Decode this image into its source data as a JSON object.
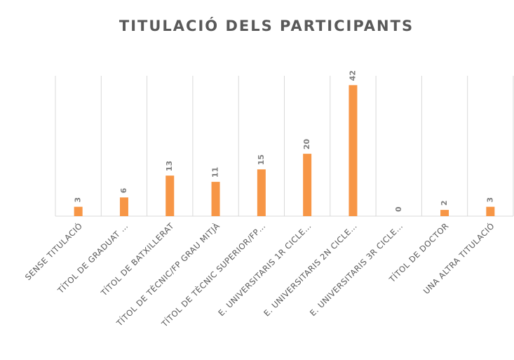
{
  "chart_data": {
    "type": "bar",
    "title": "TITULACIÓ DELS PARTICIPANTS",
    "categories": [
      "SENSE TITULACIÓ",
      "TÍTOL DE GRADUAT …",
      "TÍTOL DE BATXILLERAT",
      "TÍTOL DE TÈCNIC/FP GRAU MITJÀ",
      "TÍTOL DE TÈCNIC SUPERIOR/FP…",
      "E. UNIVERSITARIS 1R CICLE…",
      "E. UNIVERSITARIS 2N CICLE…",
      "E. UNIVERSITARIS 3R CICLE…",
      "TÍTOL DE DOCTOR",
      "UNA ALTRA TITULACIÓ"
    ],
    "values": [
      3,
      6,
      13,
      11,
      15,
      20,
      42,
      0,
      2,
      3
    ],
    "color": "#f79646",
    "ylim": [
      0,
      45
    ]
  }
}
